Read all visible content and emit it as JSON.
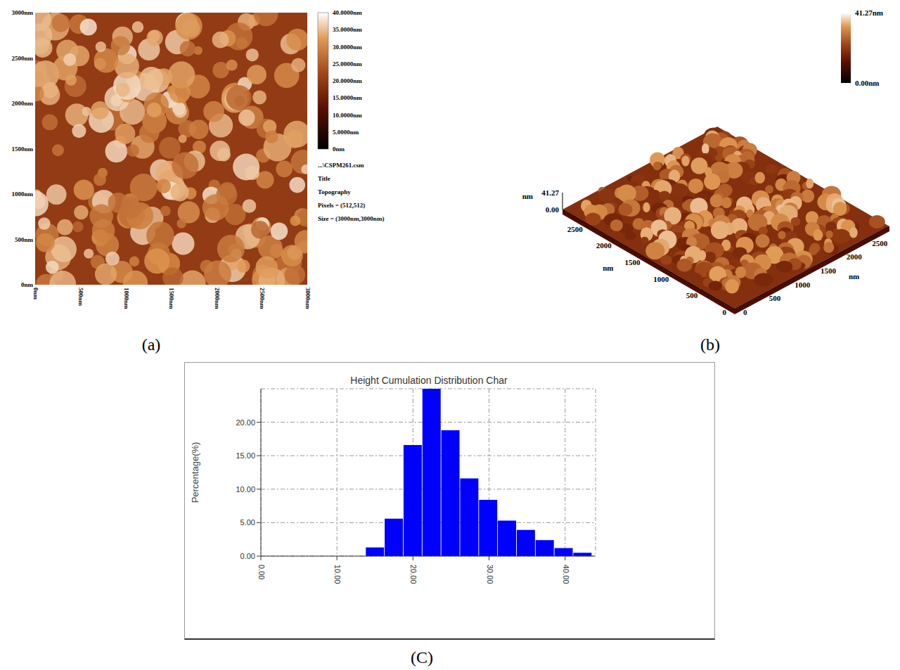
{
  "chart_data": {
    "type": "histogram",
    "title": "Height Cumulation Distribution Char",
    "y_label": "Percentage(%)",
    "bins": [
      13.8,
      16.28,
      18.76,
      21.24,
      23.72,
      26.2,
      28.68,
      31.16,
      33.64,
      36.12,
      38.6,
      41.08,
      43.56
    ],
    "values": [
      1.3,
      5.6,
      16.6,
      25.0,
      18.8,
      11.6,
      8.4,
      5.3,
      3.9,
      2.4,
      1.2,
      0.5
    ],
    "color": "#0000ff",
    "xlim": [
      0,
      44
    ],
    "xticks": [
      {
        "value": 0,
        "label": "0.00"
      },
      {
        "value": 10,
        "label": "10.00"
      },
      {
        "value": 20,
        "label": "20.00"
      },
      {
        "value": 30,
        "label": "30.00"
      },
      {
        "value": 40,
        "label": "40.00"
      }
    ],
    "ylim": [
      0,
      25
    ],
    "yticks": [
      {
        "value": 0,
        "label": "0.00"
      },
      {
        "value": 5,
        "label": "5.00"
      },
      {
        "value": 10,
        "label": "10.00"
      },
      {
        "value": 15,
        "label": "15.00"
      },
      {
        "value": 20,
        "label": "20.00"
      }
    ],
    "grid": true
  },
  "panel_labels": [
    "(a)",
    "(b)",
    "(C)"
  ],
  "topography_2d": {
    "xlim": [
      0,
      3000
    ],
    "ylim": [
      0,
      3000
    ],
    "xticks": [
      {
        "value": 0,
        "label": "0nm"
      },
      {
        "value": 500,
        "label": "500nm"
      },
      {
        "value": 1000,
        "label": "1000nm"
      },
      {
        "value": 1500,
        "label": "1500nm"
      },
      {
        "value": 2000,
        "label": "2000nm"
      },
      {
        "value": 2500,
        "label": "2500nm"
      },
      {
        "value": 3000,
        "label": "3000nm"
      }
    ],
    "yticks": [
      {
        "value": 0,
        "label": "0nm"
      },
      {
        "value": 500,
        "label": "500nm"
      },
      {
        "value": 1000,
        "label": "1000nm"
      },
      {
        "value": 1500,
        "label": "1500nm"
      },
      {
        "value": 2000,
        "label": "2000nm"
      },
      {
        "value": 2500,
        "label": "2500nm"
      },
      {
        "value": 3000,
        "label": "3000nm"
      }
    ],
    "colorbar": {
      "range": [
        0,
        40
      ],
      "ticks": [
        {
          "value": 0,
          "label": "0nm"
        },
        {
          "value": 5,
          "label": "5.0000nm"
        },
        {
          "value": 10,
          "label": "10.0000nm"
        },
        {
          "value": 15,
          "label": "15.0000nm"
        },
        {
          "value": 20,
          "label": "20.0000nm"
        },
        {
          "value": 25,
          "label": "25.0000nm"
        },
        {
          "value": 30,
          "label": "30.0000nm"
        },
        {
          "value": 35,
          "label": "35.0000nm"
        },
        {
          "value": 40,
          "label": "40.0000nm"
        }
      ]
    },
    "info": [
      "...\\CSPM261.csm",
      "Title",
      "Topography",
      "Pixels = (512,512)",
      "Size = (3000nm,3000nm)"
    ]
  },
  "topography_3d": {
    "colorbar": {
      "range": [
        0,
        41.27
      ],
      "ticks": [
        {
          "value": 41.27,
          "label": "41.27nm"
        },
        {
          "value": 0,
          "label": "0.00nm"
        }
      ]
    },
    "z_axis": {
      "label": "nm",
      "range": [
        0,
        41.27
      ],
      "ticks": [
        {
          "value": 41.27,
          "label": "41.27"
        },
        {
          "value": 0,
          "label": "0.00"
        }
      ]
    },
    "x_axis": {
      "label": "nm",
      "xlim": [
        0,
        3000
      ],
      "ticks": [
        0,
        500,
        1000,
        1500,
        2000,
        2500
      ]
    },
    "y_axis": {
      "label": "nm",
      "ylim": [
        0,
        3000
      ],
      "ticks": [
        0,
        500,
        1000,
        1500,
        2000,
        2500
      ]
    }
  }
}
